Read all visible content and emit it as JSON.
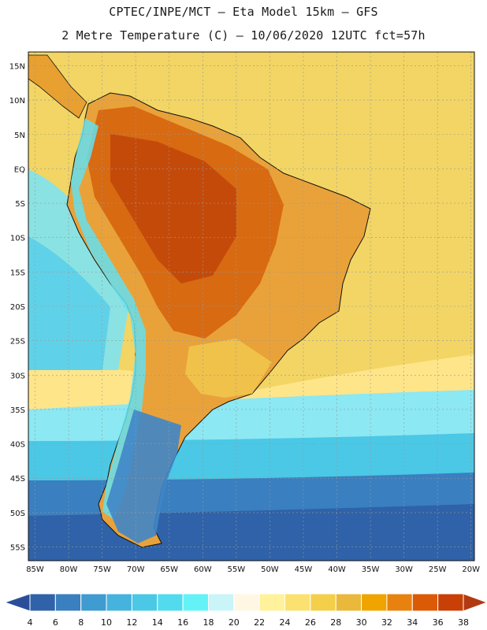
{
  "header": {
    "line1": "CPTEC/INPE/MCT –  Eta Model 15km – GFS",
    "line2": "2 Metre Temperature (C) – 10/06/2020 12UTC fct=57h"
  },
  "map": {
    "lat_labels": [
      "15N",
      "10N",
      "5N",
      "EQ",
      "5S",
      "10S",
      "15S",
      "20S",
      "25S",
      "30S",
      "35S",
      "40S",
      "45S",
      "50S",
      "55S"
    ],
    "lat_values": [
      15,
      10,
      5,
      0,
      -5,
      -10,
      -15,
      -20,
      -25,
      -30,
      -35,
      -40,
      -45,
      -50,
      -55
    ],
    "lon_labels": [
      "85W",
      "80W",
      "75W",
      "70W",
      "65W",
      "60W",
      "55W",
      "50W",
      "45W",
      "40W",
      "35W",
      "30W",
      "25W",
      "20W"
    ],
    "lon_values": [
      -85,
      -80,
      -75,
      -70,
      -65,
      -60,
      -55,
      -50,
      -45,
      -40,
      -35,
      -30,
      -25,
      -20
    ],
    "extent": {
      "lon_min": -86,
      "lon_max": -19.5,
      "lat_min": -57,
      "lat_max": 17
    }
  },
  "colorbar": {
    "labels": [
      "4",
      "6",
      "8",
      "10",
      "12",
      "14",
      "16",
      "18",
      "20",
      "22",
      "24",
      "26",
      "28",
      "30",
      "32",
      "34",
      "36",
      "38"
    ],
    "colors": [
      "#2f62a8",
      "#3a7fc0",
      "#3f9bd0",
      "#45b3de",
      "#4ac8e6",
      "#52dbee",
      "#64f2f6",
      "#c9f4f8",
      "#fff7e4",
      "#fff29a",
      "#fbe270",
      "#f3cf4a",
      "#eab83a",
      "#f0a400",
      "#e8820e",
      "#db5a05",
      "#c84006",
      "#b43304"
    ],
    "low_color": "#2a4f98",
    "high_color": "#b23a12"
  }
}
